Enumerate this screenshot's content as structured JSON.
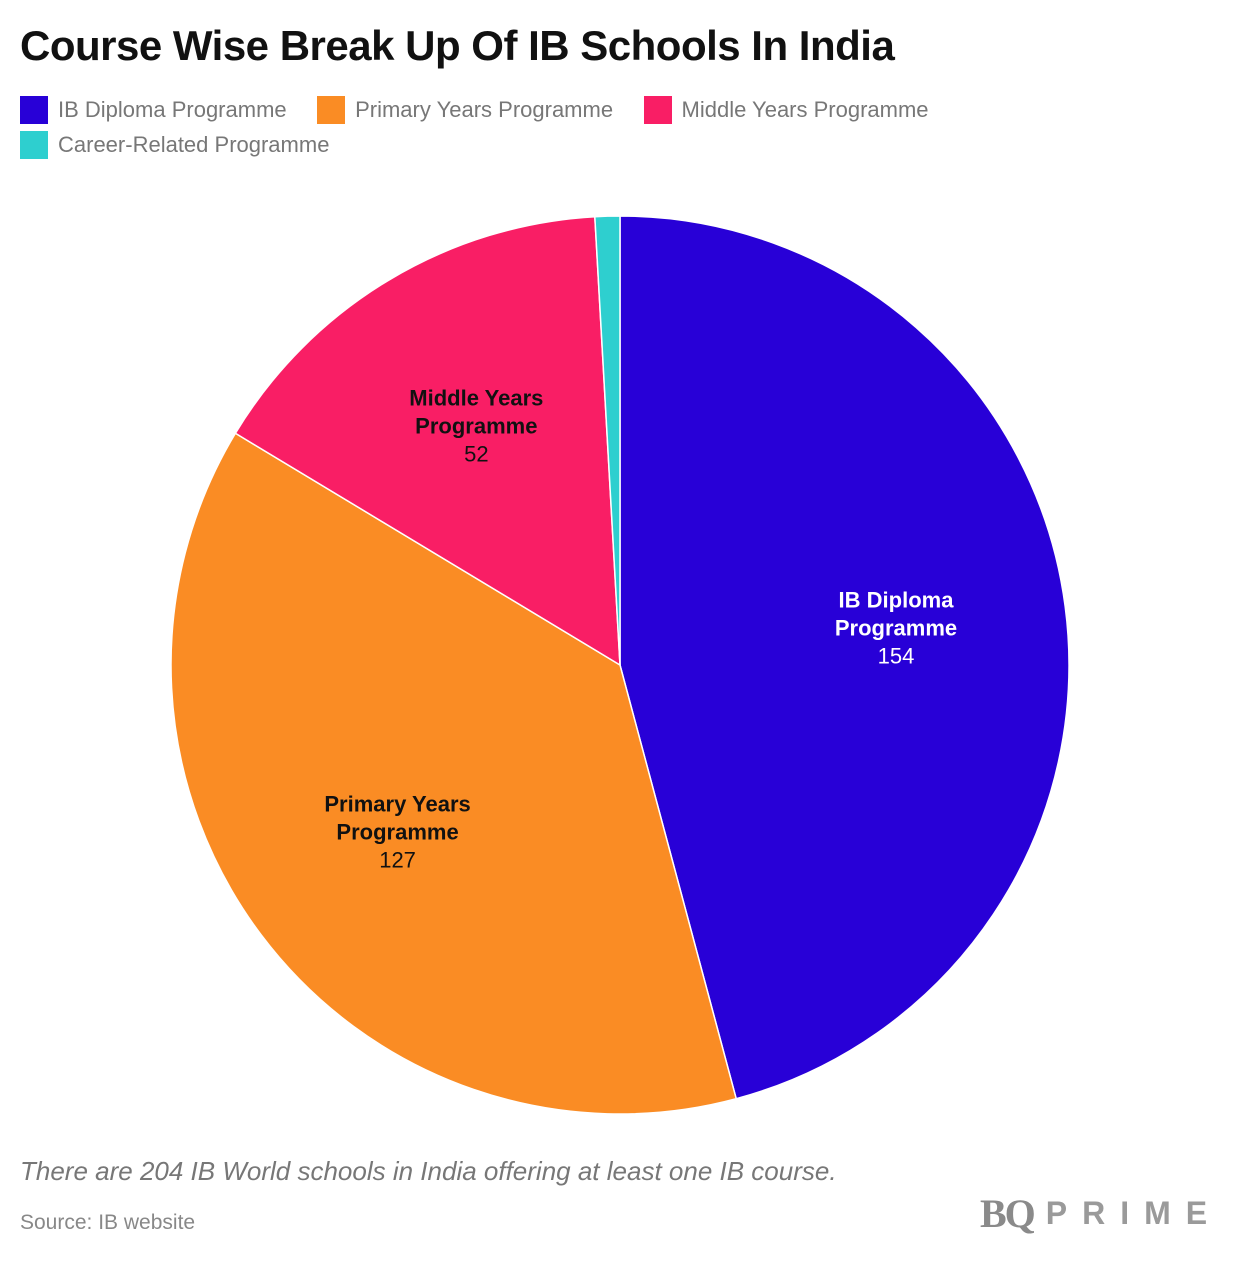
{
  "title": "Course Wise Break Up Of IB Schools In India",
  "note": "There are 204 IB World schools in India offering at least one IB course.",
  "source": "Source: IB website",
  "logo": {
    "bq": "BQ",
    "prime": "PRIME"
  },
  "legend": [
    {
      "label": "IB Diploma Programme",
      "color": "#2800d7"
    },
    {
      "label": "Primary Years Programme",
      "color": "#fa8c24"
    },
    {
      "label": "Middle Years Programme",
      "color": "#f91e65"
    },
    {
      "label": "Career-Related Programme",
      "color": "#2ecfcf"
    }
  ],
  "chart_data": {
    "type": "pie",
    "title": "Course Wise Break Up Of IB Schools In India",
    "legend_position": "top-left",
    "slices": [
      {
        "label": "IB Diploma Programme",
        "label_lines": [
          "IB Diploma",
          "Programme"
        ],
        "value": 154,
        "color": "#2800d7",
        "label_color": "#ffffff"
      },
      {
        "label": "Primary Years Programme",
        "label_lines": [
          "Primary Years",
          "Programme"
        ],
        "value": 127,
        "color": "#fa8c24",
        "label_color": "#111111"
      },
      {
        "label": "Middle Years Programme",
        "label_lines": [
          "Middle Years",
          "Programme"
        ],
        "value": 52,
        "color": "#f91e65",
        "label_color": "#111111"
      },
      {
        "label": "Career-Related Programme",
        "label_lines": [],
        "value": 3,
        "color": "#2ecfcf",
        "label_color": "#111111"
      }
    ]
  }
}
